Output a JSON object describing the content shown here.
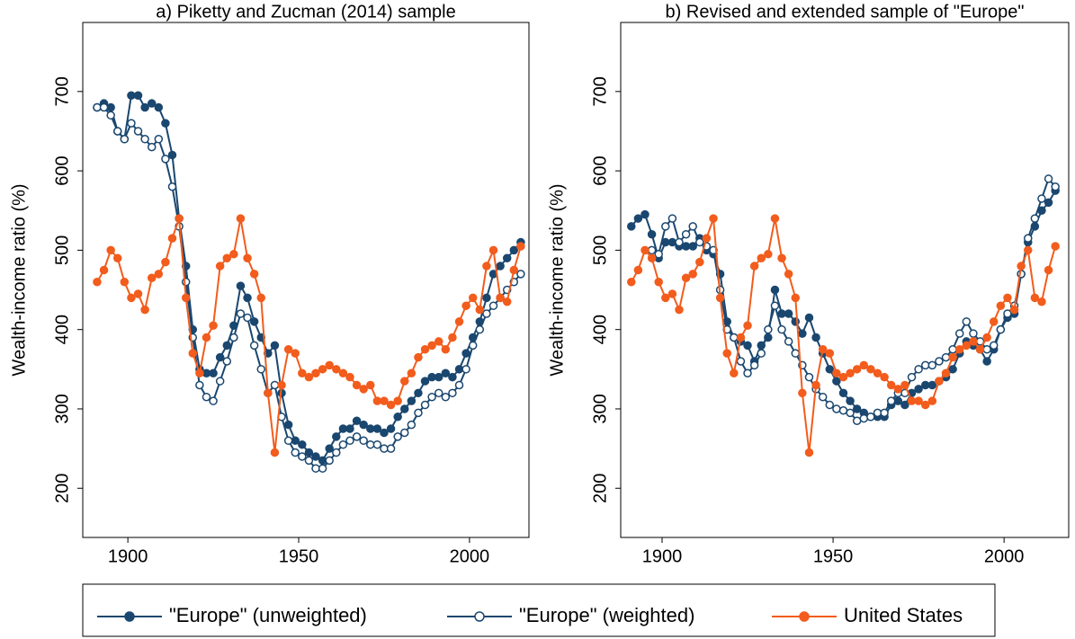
{
  "chart_data": [
    {
      "type": "line",
      "title": "a) Piketty and Zucman (2014) sample",
      "y_label": "Wealth-income ratio (%)",
      "x": [
        1891,
        1893,
        1895,
        1897,
        1899,
        1901,
        1903,
        1905,
        1907,
        1909,
        1911,
        1913,
        1915,
        1917,
        1919,
        1921,
        1923,
        1925,
        1927,
        1929,
        1931,
        1933,
        1935,
        1937,
        1939,
        1941,
        1943,
        1945,
        1947,
        1949,
        1951,
        1953,
        1955,
        1957,
        1959,
        1961,
        1963,
        1965,
        1967,
        1969,
        1971,
        1973,
        1975,
        1977,
        1979,
        1981,
        1983,
        1985,
        1987,
        1989,
        1991,
        1993,
        1995,
        1997,
        1999,
        2001,
        2003,
        2005,
        2007,
        2009,
        2011,
        2013,
        2015
      ],
      "series": [
        {
          "name": "\"Europe\" (unweighted)",
          "color": "#1a476f",
          "marker": "filled",
          "values": [
            680,
            685,
            680,
            650,
            640,
            695,
            695,
            680,
            685,
            680,
            660,
            620,
            540,
            480,
            400,
            350,
            345,
            345,
            365,
            380,
            405,
            455,
            440,
            410,
            390,
            370,
            380,
            320,
            280,
            260,
            255,
            245,
            240,
            235,
            250,
            265,
            275,
            275,
            285,
            280,
            275,
            275,
            270,
            275,
            290,
            300,
            310,
            320,
            335,
            340,
            340,
            345,
            340,
            350,
            370,
            390,
            410,
            440,
            470,
            480,
            490,
            500,
            510
          ]
        },
        {
          "name": "\"Europe\" (weighted)",
          "color": "#1a476f",
          "marker": "open",
          "values": [
            680,
            680,
            670,
            650,
            640,
            660,
            650,
            640,
            630,
            640,
            615,
            580,
            530,
            460,
            390,
            330,
            315,
            310,
            335,
            360,
            390,
            420,
            415,
            380,
            350,
            320,
            330,
            290,
            260,
            245,
            240,
            235,
            225,
            225,
            235,
            245,
            255,
            260,
            265,
            260,
            255,
            255,
            250,
            250,
            265,
            270,
            280,
            295,
            305,
            315,
            320,
            315,
            320,
            330,
            350,
            380,
            400,
            420,
            430,
            440,
            450,
            460,
            470
          ]
        },
        {
          "name": "United States",
          "color": "#f25c1c",
          "marker": "filled",
          "values": [
            460,
            475,
            500,
            490,
            460,
            440,
            445,
            425,
            465,
            470,
            485,
            515,
            540,
            440,
            370,
            345,
            390,
            405,
            480,
            490,
            495,
            540,
            490,
            470,
            440,
            320,
            245,
            330,
            375,
            370,
            345,
            340,
            345,
            350,
            355,
            350,
            345,
            340,
            330,
            325,
            330,
            310,
            310,
            305,
            310,
            335,
            345,
            365,
            375,
            380,
            385,
            375,
            390,
            410,
            430,
            440,
            425,
            480,
            500,
            440,
            435,
            475,
            505
          ]
        }
      ],
      "xlim": [
        1886.8,
        2017.4
      ],
      "ylim": [
        138,
        787
      ],
      "xticks": [
        1900,
        1950,
        2000
      ],
      "yticks": [
        200,
        300,
        400,
        500,
        600,
        700
      ]
    },
    {
      "type": "line",
      "title": "b) Revised and extended sample of \"Europe\"",
      "y_label": "Wealth-income ratio (%)",
      "x": [
        1891,
        1893,
        1895,
        1897,
        1899,
        1901,
        1903,
        1905,
        1907,
        1909,
        1911,
        1913,
        1915,
        1917,
        1919,
        1921,
        1923,
        1925,
        1927,
        1929,
        1931,
        1933,
        1935,
        1937,
        1939,
        1941,
        1943,
        1945,
        1947,
        1949,
        1951,
        1953,
        1955,
        1957,
        1959,
        1961,
        1963,
        1965,
        1967,
        1969,
        1971,
        1973,
        1975,
        1977,
        1979,
        1981,
        1983,
        1985,
        1987,
        1989,
        1991,
        1993,
        1995,
        1997,
        1999,
        2001,
        2003,
        2005,
        2007,
        2009,
        2011,
        2013,
        2015
      ],
      "series": [
        {
          "color": "#1a476f",
          "marker": "filled",
          "values": [
            530,
            540,
            545,
            520,
            490,
            510,
            510,
            505,
            505,
            505,
            515,
            500,
            495,
            470,
            410,
            390,
            385,
            380,
            360,
            380,
            390,
            450,
            420,
            420,
            410,
            395,
            415,
            390,
            370,
            350,
            335,
            320,
            310,
            300,
            295,
            290,
            290,
            290,
            305,
            310,
            305,
            320,
            325,
            330,
            330,
            335,
            340,
            350,
            370,
            385,
            380,
            375,
            360,
            375,
            400,
            415,
            420,
            470,
            510,
            530,
            550,
            560,
            575
          ]
        },
        {
          "color": "#1a476f",
          "marker": "open",
          "values": [
            null,
            null,
            null,
            500,
            495,
            530,
            540,
            510,
            520,
            530,
            510,
            505,
            500,
            450,
            400,
            390,
            360,
            345,
            355,
            370,
            400,
            430,
            400,
            385,
            370,
            355,
            340,
            325,
            315,
            305,
            300,
            298,
            295,
            285,
            288,
            290,
            295,
            295,
            310,
            320,
            320,
            340,
            350,
            355,
            355,
            360,
            365,
            375,
            395,
            410,
            395,
            385,
            375,
            380,
            400,
            420,
            430,
            470,
            515,
            540,
            565,
            590,
            580
          ]
        },
        {
          "color": "#f25c1c",
          "marker": "filled",
          "values": [
            460,
            475,
            500,
            490,
            460,
            440,
            445,
            425,
            465,
            470,
            485,
            515,
            540,
            440,
            370,
            345,
            390,
            405,
            480,
            490,
            495,
            540,
            490,
            470,
            440,
            320,
            245,
            330,
            375,
            370,
            345,
            340,
            345,
            350,
            355,
            350,
            345,
            340,
            330,
            325,
            330,
            310,
            310,
            305,
            310,
            335,
            345,
            365,
            375,
            380,
            385,
            375,
            390,
            410,
            430,
            440,
            425,
            480,
            500,
            440,
            435,
            475,
            505
          ]
        }
      ],
      "xlim": [
        1887.9,
        2018.9
      ],
      "ylim": [
        138,
        787
      ],
      "xticks": [
        1900,
        1950,
        2000
      ],
      "yticks": [
        200,
        300,
        400,
        500,
        600,
        700
      ]
    }
  ]
}
